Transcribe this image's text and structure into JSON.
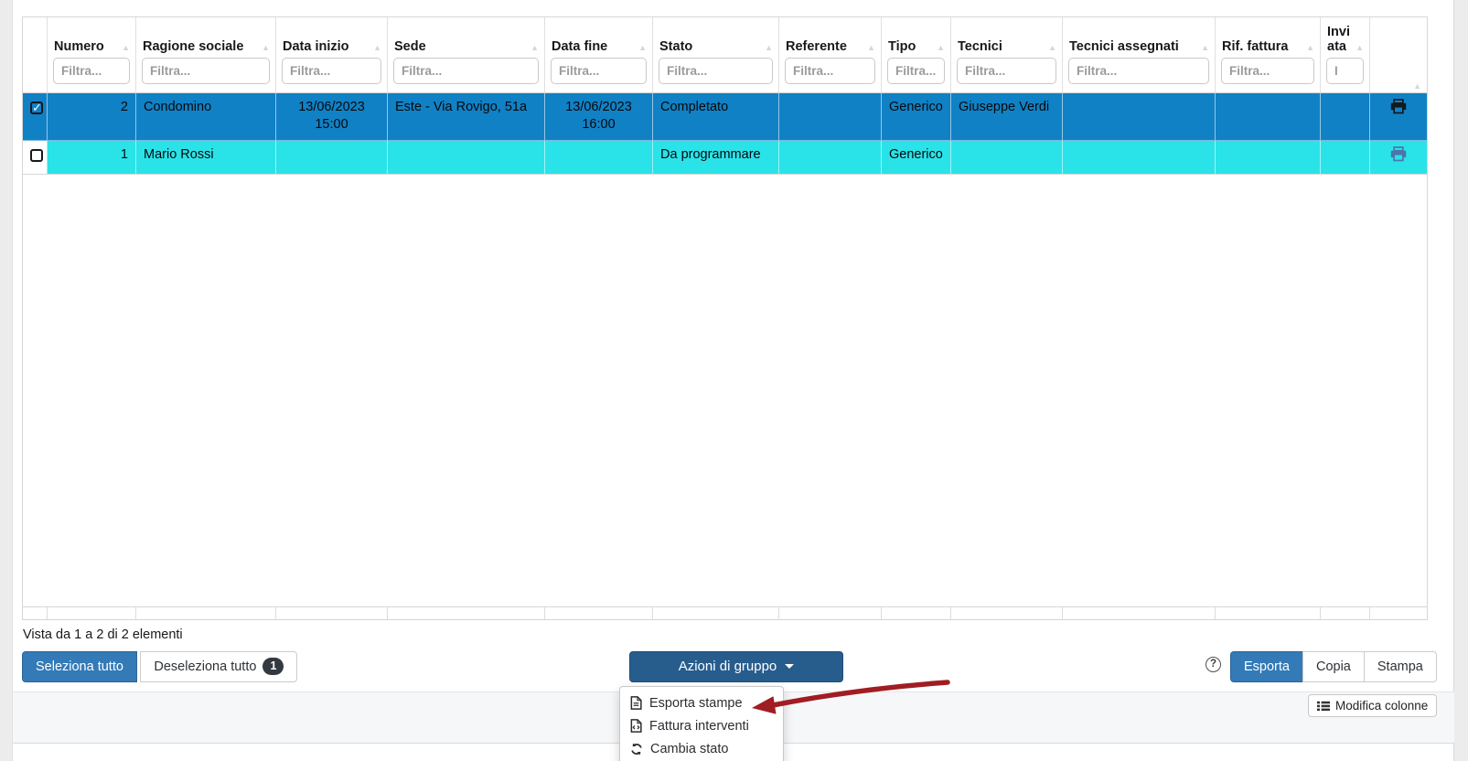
{
  "colors": {
    "selected_row": "#1181c5",
    "state_row_cyan": "#2ae3e8",
    "primary_button": "#337ab7",
    "group_actions_button": "#275d8d",
    "annotation_arrow": "#a01d23",
    "muted_print_icon": "#4a76ad"
  },
  "table": {
    "columns": [
      {
        "id": "sel",
        "label": "",
        "type": "checkbox"
      },
      {
        "id": "numero",
        "label": "Numero",
        "placeholder": "Filtra...",
        "align": "right"
      },
      {
        "id": "ragione_sociale",
        "label": "Ragione sociale",
        "placeholder": "Filtra..."
      },
      {
        "id": "data_inizio",
        "label": "Data inizio",
        "placeholder": "Filtra...",
        "align": "center"
      },
      {
        "id": "sede",
        "label": "Sede",
        "placeholder": "Filtra..."
      },
      {
        "id": "data_fine",
        "label": "Data fine",
        "placeholder": "Filtra...",
        "align": "center"
      },
      {
        "id": "stato",
        "label": "Stato",
        "placeholder": "Filtra..."
      },
      {
        "id": "referente",
        "label": "Referente",
        "placeholder": "Filtra..."
      },
      {
        "id": "tipo",
        "label": "Tipo",
        "placeholder": "Filtra..."
      },
      {
        "id": "tecnici",
        "label": "Tecnici",
        "placeholder": "Filtra..."
      },
      {
        "id": "tecnici_assegnati",
        "label": "Tecnici assegnati",
        "placeholder": "Filtra..."
      },
      {
        "id": "rif_fattura",
        "label": "Rif. fattura",
        "placeholder": "Filtra..."
      },
      {
        "id": "inviata",
        "label": "Inviata",
        "placeholder": "I",
        "align": "center"
      },
      {
        "id": "print",
        "label": "",
        "type": "print"
      }
    ],
    "rows": [
      {
        "selected": true,
        "checked": true,
        "numero": "2",
        "ragione_sociale": "Condomino",
        "data_inizio": "13/06/2023 15:00",
        "sede": "Este - Via Rovigo, 51a",
        "data_fine": "13/06/2023 16:00",
        "stato": "Completato",
        "referente": "",
        "tipo": "Generico",
        "tecnici": "Giuseppe Verdi",
        "tecnici_assegnati": "",
        "rif_fattura": "",
        "inviata": ""
      },
      {
        "selected": false,
        "checked": false,
        "numero": "1",
        "ragione_sociale": "Mario Rossi",
        "data_inizio": "",
        "sede": "",
        "data_fine": "",
        "stato": "Da programmare",
        "referente": "",
        "tipo": "Generico",
        "tecnici": "",
        "tecnici_assegnati": "",
        "rif_fattura": "",
        "inviata": ""
      }
    ]
  },
  "summary": "Vista da 1 a 2 di 2 elementi",
  "selection_buttons": {
    "select_all": "Seleziona tutto",
    "deselect_all": "Deseleziona tutto",
    "deselect_badge": "1"
  },
  "group_actions": {
    "button_label": "Azioni di gruppo",
    "menu": [
      {
        "icon": "file-export-icon",
        "label": "Esporta stampe"
      },
      {
        "icon": "file-code-icon",
        "label": "Fattura interventi"
      },
      {
        "icon": "sync-icon",
        "label": "Cambia stato"
      }
    ]
  },
  "export_buttons": [
    {
      "label": "Esporta",
      "active": true
    },
    {
      "label": "Copia",
      "active": false
    },
    {
      "label": "Stampa",
      "active": false
    }
  ],
  "help_label": "?",
  "modify_columns_label": "Modifica colonne"
}
